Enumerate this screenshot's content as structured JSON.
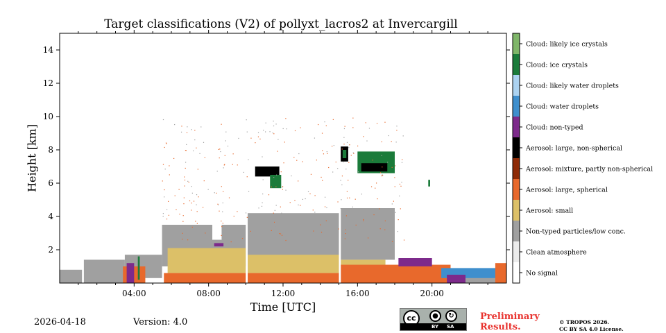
{
  "chart_data": {
    "type": "heatmap",
    "title": "Target classifications (V2) of pollyxt_lacros2 at Invercargill",
    "xlabel": "Time [UTC]",
    "ylabel": "Height [km]",
    "xlim": [
      0,
      24
    ],
    "ylim": [
      0,
      15
    ],
    "xticks": [
      4,
      8,
      12,
      16,
      20
    ],
    "xtick_labels": [
      "04:00",
      "08:00",
      "12:00",
      "16:00",
      "20:00"
    ],
    "yticks": [
      2,
      4,
      6,
      8,
      10,
      12,
      14
    ],
    "ytick_labels": [
      "2",
      "4",
      "6",
      "8",
      "10",
      "12",
      "14"
    ],
    "legend_position": "right colorbar",
    "classes": [
      {
        "name": "No signal",
        "color": "#ffffff"
      },
      {
        "name": "Clean atmosphere",
        "color": "#ececec"
      },
      {
        "name": "Non-typed particles/low conc.",
        "color": "#a0a0a0"
      },
      {
        "name": "Aerosol: small",
        "color": "#dcc068"
      },
      {
        "name": "Aerosol: large, spherical",
        "color": "#e8692c"
      },
      {
        "name": "Aerosol: mixture, partly non-spherical",
        "color": "#8f2b07"
      },
      {
        "name": "Aerosol: large, non-spherical",
        "color": "#000000"
      },
      {
        "name": "Cloud: non-typed",
        "color": "#7d2a8b"
      },
      {
        "name": "Cloud: water droplets",
        "color": "#3f8fcd"
      },
      {
        "name": "Cloud: likely water droplets",
        "color": "#acd3f1"
      },
      {
        "name": "Cloud: ice crystals",
        "color": "#1b7b3a"
      },
      {
        "name": "Cloud: likely ice crystals",
        "color": "#7fb669"
      }
    ],
    "regions": [
      {
        "class": 2,
        "t0": 0.0,
        "t1": 1.2,
        "h0": 0.0,
        "h1": 0.8
      },
      {
        "class": 2,
        "t0": 1.3,
        "t1": 3.5,
        "h0": 0.0,
        "h1": 1.4
      },
      {
        "class": 2,
        "t0": 3.5,
        "t1": 5.5,
        "h0": 0.3,
        "h1": 1.7
      },
      {
        "class": 2,
        "t0": 5.5,
        "t1": 10.0,
        "h0": 1.0,
        "h1": 3.5
      },
      {
        "class": 2,
        "t0": 10.1,
        "t1": 15.0,
        "h0": 1.0,
        "h1": 4.2
      },
      {
        "class": 2,
        "t0": 15.1,
        "t1": 18.0,
        "h0": 1.4,
        "h1": 4.5
      },
      {
        "class": 2,
        "t0": 18.0,
        "t1": 24.0,
        "h0": 0.0,
        "h1": 0.6
      },
      {
        "class": 3,
        "t0": 5.8,
        "t1": 10.0,
        "h0": 0.6,
        "h1": 2.1
      },
      {
        "class": 3,
        "t0": 10.1,
        "t1": 15.0,
        "h0": 0.6,
        "h1": 1.7
      },
      {
        "class": 3,
        "t0": 15.1,
        "t1": 17.5,
        "h0": 0.8,
        "h1": 1.4
      },
      {
        "class": 4,
        "t0": 3.4,
        "t1": 4.6,
        "h0": 0.0,
        "h1": 1.0
      },
      {
        "class": 4,
        "t0": 5.6,
        "t1": 10.0,
        "h0": 0.0,
        "h1": 0.6
      },
      {
        "class": 4,
        "t0": 10.1,
        "t1": 15.0,
        "h0": 0.0,
        "h1": 0.6
      },
      {
        "class": 4,
        "t0": 15.1,
        "t1": 21.0,
        "h0": 0.0,
        "h1": 1.1
      },
      {
        "class": 0,
        "t0": 10.0,
        "t1": 10.1,
        "h0": 0.0,
        "h1": 15.0
      },
      {
        "class": 0,
        "t0": 15.0,
        "t1": 15.1,
        "h0": 0.0,
        "h1": 15.0
      },
      {
        "class": 0,
        "t0": 8.2,
        "t1": 8.7,
        "h0": 2.6,
        "h1": 8.0
      },
      {
        "class": 7,
        "t0": 8.3,
        "t1": 8.8,
        "h0": 2.2,
        "h1": 2.4
      },
      {
        "class": 6,
        "t0": 10.5,
        "t1": 11.8,
        "h0": 6.4,
        "h1": 7.0
      },
      {
        "class": 10,
        "t0": 11.3,
        "t1": 11.9,
        "h0": 5.7,
        "h1": 6.5
      },
      {
        "class": 6,
        "t0": 15.1,
        "t1": 15.5,
        "h0": 7.3,
        "h1": 8.2
      },
      {
        "class": 10,
        "t0": 15.2,
        "t1": 15.4,
        "h0": 7.5,
        "h1": 8.0
      },
      {
        "class": 10,
        "t0": 16.0,
        "t1": 18.0,
        "h0": 6.6,
        "h1": 7.9
      },
      {
        "class": 6,
        "t0": 16.2,
        "t1": 17.6,
        "h0": 6.7,
        "h1": 7.2
      },
      {
        "class": 7,
        "t0": 18.2,
        "t1": 20.0,
        "h0": 1.0,
        "h1": 1.5
      },
      {
        "class": 8,
        "t0": 20.5,
        "t1": 23.5,
        "h0": 0.3,
        "h1": 0.9
      },
      {
        "class": 7,
        "t0": 20.8,
        "t1": 21.8,
        "h0": 0.0,
        "h1": 0.5
      },
      {
        "class": 4,
        "t0": 23.4,
        "t1": 24.0,
        "h0": 0.0,
        "h1": 1.2
      },
      {
        "class": 7,
        "t0": 3.6,
        "t1": 4.0,
        "h0": 0.0,
        "h1": 1.2
      },
      {
        "class": 10,
        "t0": 4.2,
        "t1": 4.3,
        "h0": 0.2,
        "h1": 1.6
      },
      {
        "class": 10,
        "t0": 19.8,
        "t1": 19.9,
        "h0": 5.8,
        "h1": 6.2
      }
    ]
  },
  "footer": {
    "date": "2026-04-18",
    "version": "Version: 4.0",
    "preliminary_line1": "Preliminary",
    "preliminary_line2": "Results.",
    "copyright_line1": "© TROPOS 2026.",
    "copyright_line2": "CC BY SA 4.0 License.",
    "cc_by": "BY",
    "cc_sa": "SA",
    "cc_mark": "cc"
  }
}
